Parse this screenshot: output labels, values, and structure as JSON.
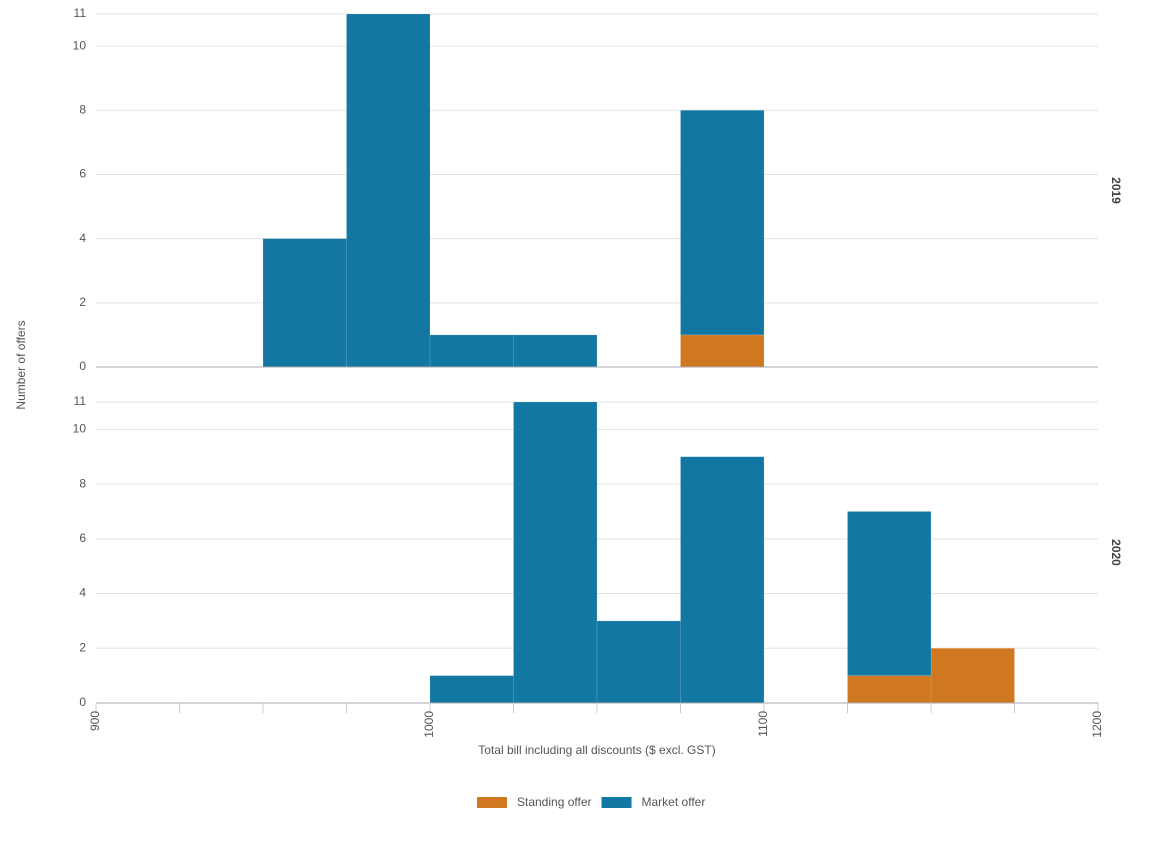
{
  "chart_data": [
    {
      "type": "histogram",
      "facet": "2019",
      "ylabel": "Number of offers",
      "bins": [
        900,
        925,
        950,
        975,
        1000,
        1025,
        1050,
        1075,
        1100,
        1125,
        1150,
        1175,
        1200
      ],
      "series": [
        {
          "name": "Standing offer",
          "color": "#d07820",
          "values": [
            0,
            0,
            0,
            0,
            0,
            0,
            0,
            1,
            0,
            0,
            0,
            0
          ]
        },
        {
          "name": "Market offer",
          "color": "#1377a3",
          "values": [
            0,
            0,
            4,
            11,
            1,
            1,
            0,
            7,
            0,
            0,
            0,
            0
          ]
        }
      ],
      "xlim": [
        900,
        1200
      ],
      "ylim": [
        0,
        11
      ],
      "yticks": [
        0,
        2,
        4,
        6,
        8,
        10,
        11
      ],
      "grid": true
    },
    {
      "type": "histogram",
      "facet": "2020",
      "xlabel": "Total bill including all discounts ($ excl. GST)",
      "bins": [
        900,
        925,
        950,
        975,
        1000,
        1025,
        1050,
        1075,
        1100,
        1125,
        1150,
        1175,
        1200
      ],
      "series": [
        {
          "name": "Standing offer",
          "color": "#d07820",
          "values": [
            0,
            0,
            0,
            0,
            0,
            0,
            0,
            0,
            0,
            1,
            2,
            0
          ]
        },
        {
          "name": "Market offer",
          "color": "#1377a3",
          "values": [
            0,
            0,
            0,
            0,
            1,
            11,
            3,
            9,
            0,
            6,
            0,
            0
          ]
        }
      ],
      "xlim": [
        900,
        1200
      ],
      "ylim": [
        0,
        11
      ],
      "yticks": [
        0,
        2,
        4,
        6,
        8,
        10,
        11
      ],
      "xticks": [
        900,
        1000,
        1100,
        1200
      ],
      "grid": true
    }
  ]
}
